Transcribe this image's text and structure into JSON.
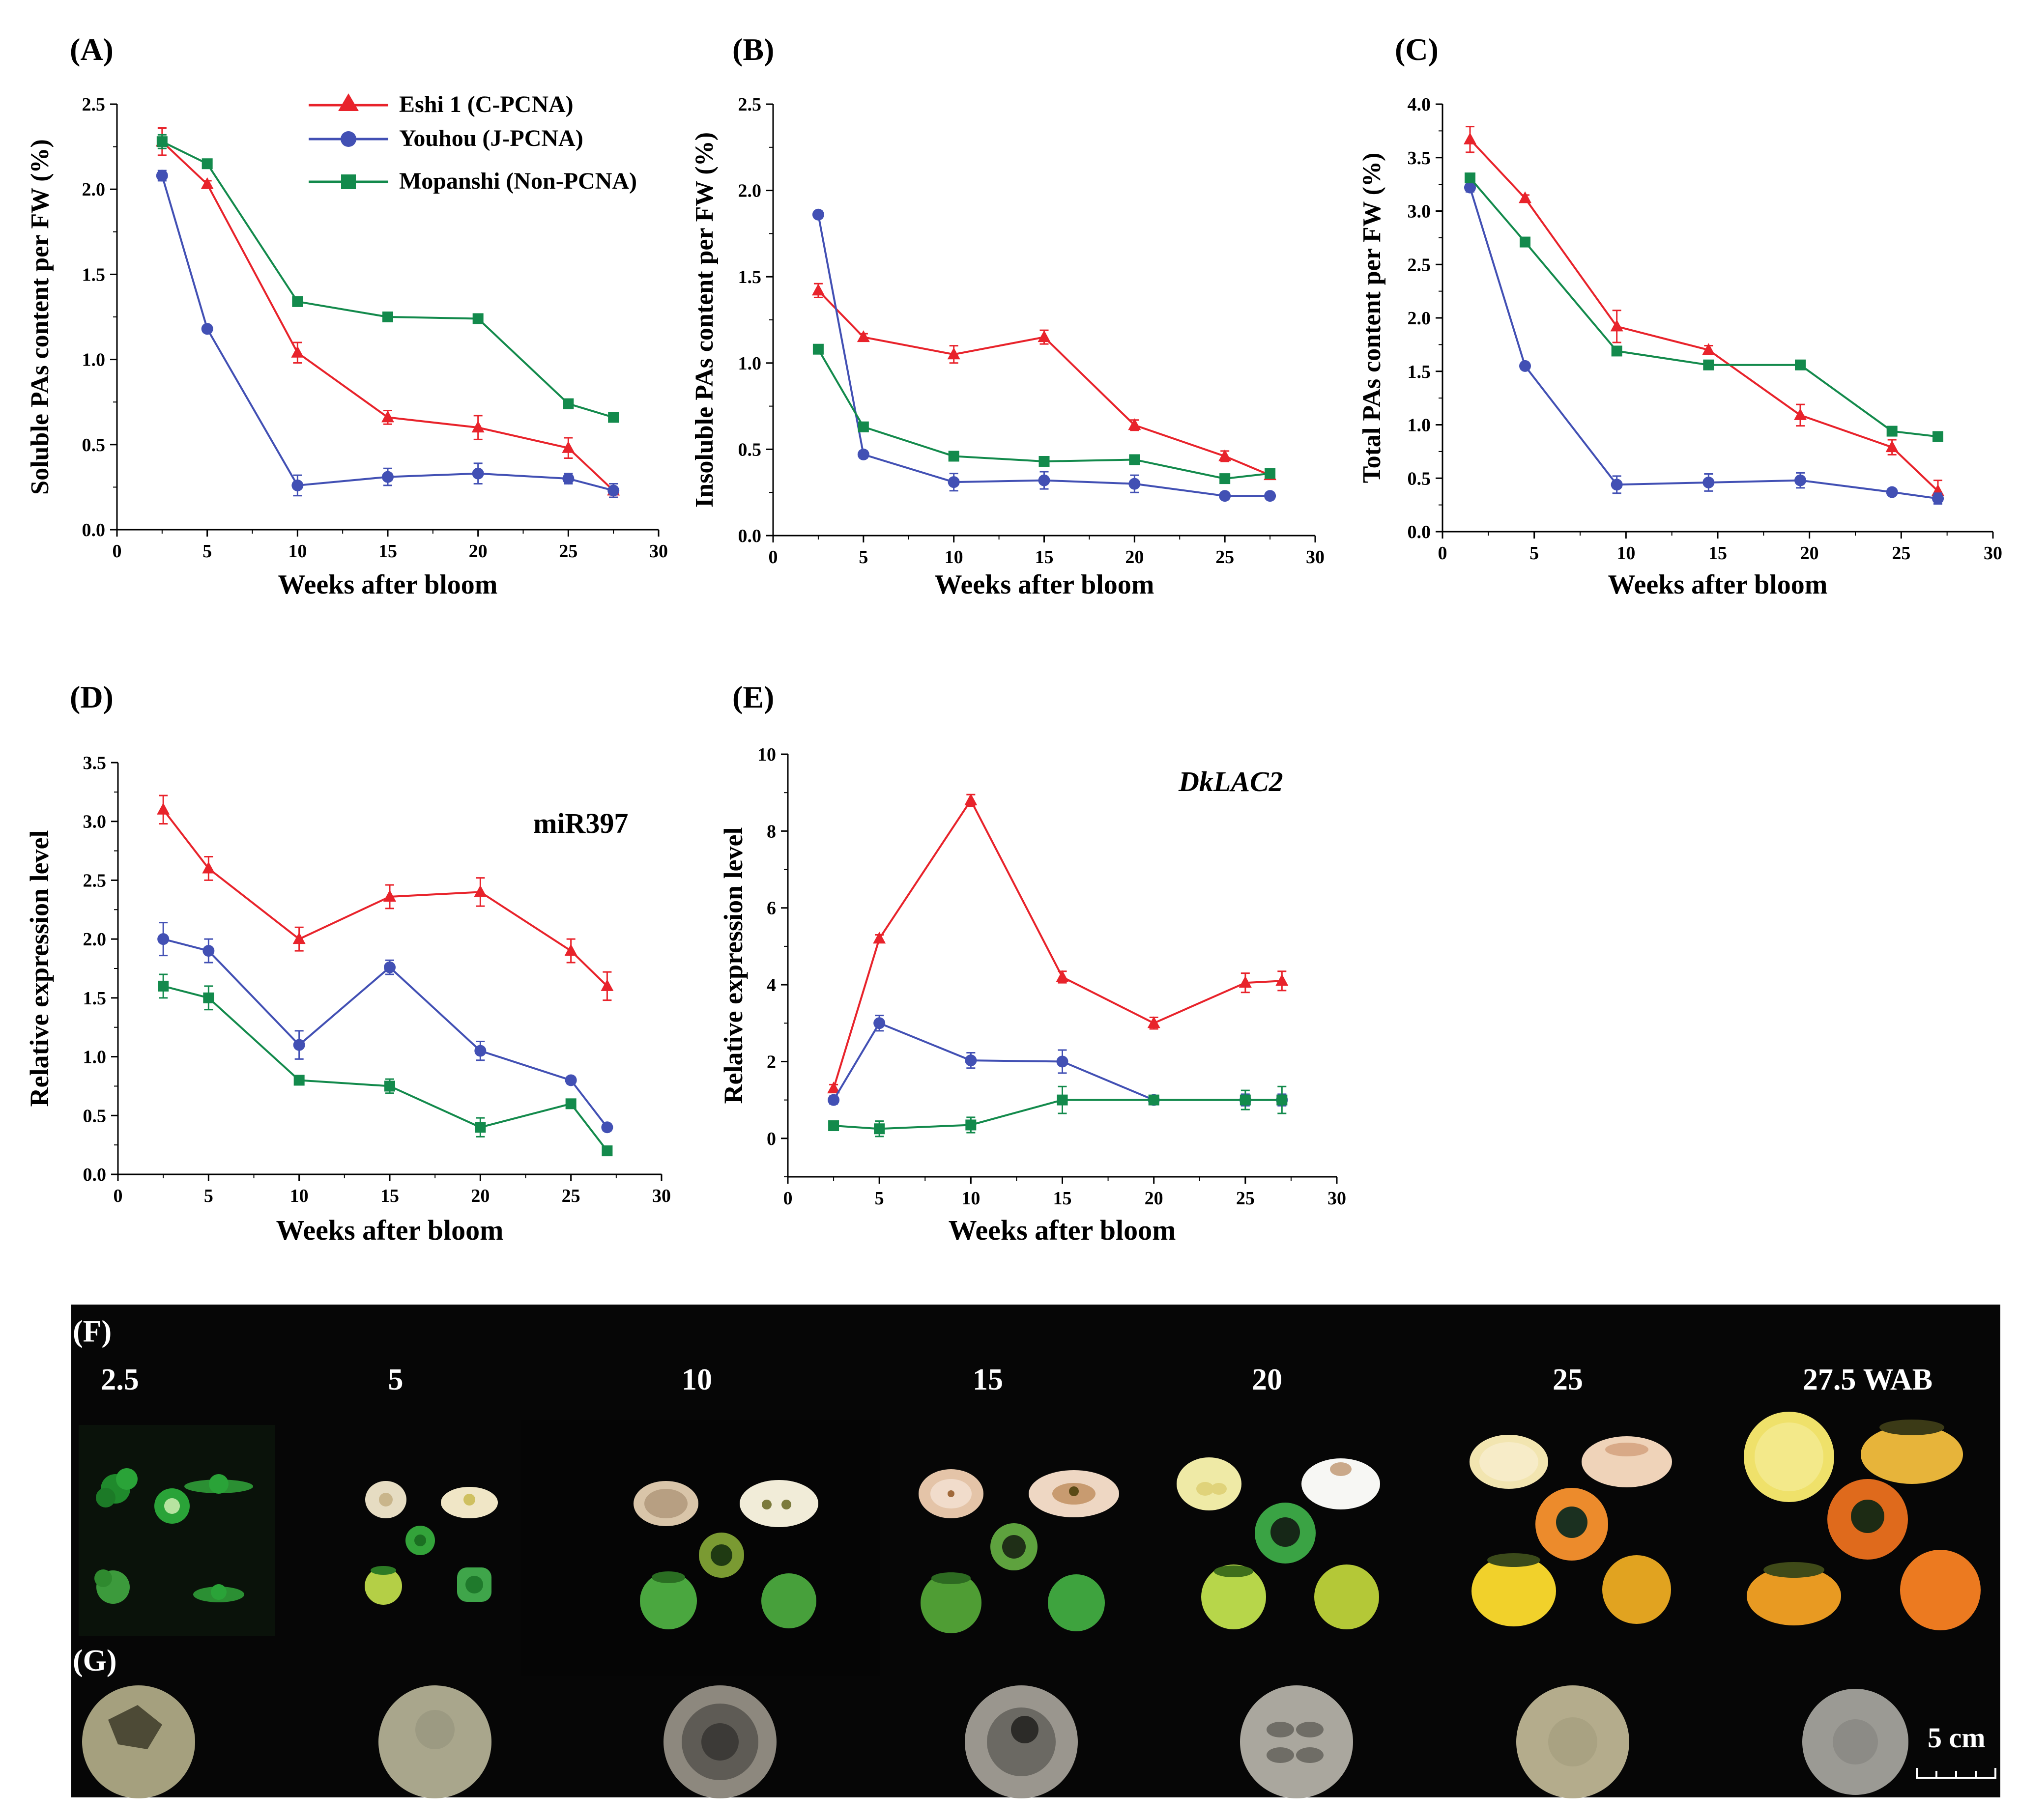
{
  "colors": {
    "eshi": "#e8232b",
    "youhou": "#4250b4",
    "mopanshi": "#138a4c",
    "axis": "#000000",
    "photo_bg": "#060606",
    "photo_text": "#ffffff"
  },
  "legend": {
    "items": [
      {
        "series": "eshi",
        "label": "Eshi 1 (C-PCNA)",
        "marker": "triangle"
      },
      {
        "series": "youhou",
        "label": "Youhou  (J-PCNA)",
        "marker": "circle"
      },
      {
        "series": "mopanshi",
        "label": "Mopanshi  (Non-PCNA)",
        "marker": "square"
      }
    ]
  },
  "chart_data": [
    {
      "panel_label": "(A)",
      "type": "line",
      "title": "",
      "xlabel": "Weeks after bloom",
      "ylabel": "Soluble PAs content per FW (%)",
      "xlim": [
        0,
        30
      ],
      "ylim": [
        0,
        2.5
      ],
      "xticks": [
        "0",
        "5",
        "10",
        "15",
        "20",
        "25",
        "30"
      ],
      "yticks": [
        "0.0",
        "0.5",
        "1.0",
        "1.5",
        "2.0",
        "2.5"
      ],
      "series": [
        {
          "name": "Eshi 1 (C-PCNA)",
          "key": "eshi",
          "marker": "triangle",
          "x": [
            2.5,
            5,
            10,
            15,
            20,
            25,
            27.5
          ],
          "y": [
            2.28,
            2.03,
            1.04,
            0.66,
            0.6,
            0.48,
            0.23
          ],
          "err": [
            0.08,
            0.02,
            0.06,
            0.04,
            0.07,
            0.06,
            0.04
          ]
        },
        {
          "name": "Youhou  (J-PCNA)",
          "key": "youhou",
          "marker": "circle",
          "x": [
            2.5,
            5,
            10,
            15,
            20,
            25,
            27.5
          ],
          "y": [
            2.08,
            1.18,
            0.26,
            0.31,
            0.33,
            0.3,
            0.23
          ],
          "err": [
            0.03,
            0.02,
            0.06,
            0.05,
            0.06,
            0.03,
            0.04
          ]
        },
        {
          "name": "Mopanshi  (Non-PCNA)",
          "key": "mopanshi",
          "marker": "square",
          "x": [
            2.5,
            5,
            10,
            15,
            20,
            25,
            27.5
          ],
          "y": [
            2.28,
            2.15,
            1.34,
            1.25,
            1.24,
            0.74,
            0.66
          ],
          "err": [
            0.04,
            0.02,
            0.02,
            0.02,
            0.02,
            0.02,
            0.02
          ]
        }
      ]
    },
    {
      "panel_label": "(B)",
      "type": "line",
      "title": "",
      "xlabel": "Weeks after bloom",
      "ylabel": "Insoluble PAs content per FW (%)",
      "xlim": [
        0,
        30
      ],
      "ylim": [
        0,
        2.5
      ],
      "xticks": [
        "0",
        "5",
        "10",
        "15",
        "20",
        "25",
        "30"
      ],
      "yticks": [
        "0.0",
        "0.5",
        "1.0",
        "1.5",
        "2.0",
        "2.5"
      ],
      "series": [
        {
          "name": "Eshi 1 (C-PCNA)",
          "key": "eshi",
          "marker": "triangle",
          "x": [
            2.5,
            5,
            10,
            15,
            20,
            25,
            27.5
          ],
          "y": [
            1.42,
            1.15,
            1.05,
            1.15,
            0.64,
            0.46,
            0.35
          ],
          "err": [
            0.04,
            0.02,
            0.05,
            0.04,
            0.03,
            0.03,
            0.02
          ]
        },
        {
          "name": "Youhou  (J-PCNA)",
          "key": "youhou",
          "marker": "circle",
          "x": [
            2.5,
            5,
            10,
            15,
            20,
            25,
            27.5
          ],
          "y": [
            1.86,
            0.47,
            0.31,
            0.32,
            0.3,
            0.23,
            0.23
          ],
          "err": [
            0.02,
            0.02,
            0.05,
            0.05,
            0.05,
            0.02,
            0.02
          ]
        },
        {
          "name": "Mopanshi  (Non-PCNA)",
          "key": "mopanshi",
          "marker": "square",
          "x": [
            2.5,
            5,
            10,
            15,
            20,
            25,
            27.5
          ],
          "y": [
            1.08,
            0.63,
            0.46,
            0.43,
            0.44,
            0.33,
            0.36
          ],
          "err": [
            0.02,
            0.02,
            0.02,
            0.02,
            0.02,
            0.02,
            0.02
          ]
        }
      ]
    },
    {
      "panel_label": "(C)",
      "type": "line",
      "title": "",
      "xlabel": "Weeks after bloom",
      "ylabel": "Total PAs content per FW (%)",
      "xlim": [
        0,
        30
      ],
      "ylim": [
        0,
        4.0
      ],
      "xticks": [
        "0",
        "5",
        "10",
        "15",
        "20",
        "25",
        "30"
      ],
      "yticks": [
        "0.0",
        "0.5",
        "1.0",
        "1.5",
        "2.0",
        "2.5",
        "3.0",
        "3.5",
        "4.0"
      ],
      "series": [
        {
          "name": "Eshi 1 (C-PCNA)",
          "key": "eshi",
          "marker": "triangle",
          "x": [
            1.5,
            4.5,
            9.5,
            14.5,
            19.5,
            24.5,
            27
          ],
          "y": [
            3.67,
            3.12,
            1.92,
            1.7,
            1.09,
            0.79,
            0.38
          ],
          "err": [
            0.12,
            0.03,
            0.15,
            0.04,
            0.1,
            0.07,
            0.1
          ]
        },
        {
          "name": "Youhou  (J-PCNA)",
          "key": "youhou",
          "marker": "circle",
          "x": [
            1.5,
            4.5,
            9.5,
            14.5,
            19.5,
            24.5,
            27
          ],
          "y": [
            3.22,
            1.55,
            0.44,
            0.46,
            0.48,
            0.37,
            0.31
          ],
          "err": [
            0.04,
            0.03,
            0.08,
            0.08,
            0.07,
            0.03,
            0.05
          ]
        },
        {
          "name": "Mopanshi  (Non-PCNA)",
          "key": "mopanshi",
          "marker": "square",
          "x": [
            1.5,
            4.5,
            9.5,
            14.5,
            19.5,
            24.5,
            27
          ],
          "y": [
            3.31,
            2.71,
            1.69,
            1.56,
            1.56,
            0.94,
            0.89
          ],
          "err": [
            0.04,
            0.02,
            0.03,
            0.02,
            0.02,
            0.02,
            0.02
          ]
        }
      ]
    },
    {
      "panel_label": "(D)",
      "type": "line",
      "title": "miR397",
      "title_italic": false,
      "xlabel": "Weeks after bloom",
      "ylabel": "Relative expression level",
      "xlim": [
        0,
        30
      ],
      "ylim": [
        0,
        3.5
      ],
      "xticks": [
        "0",
        "5",
        "10",
        "15",
        "20",
        "25",
        "30"
      ],
      "yticks": [
        "0.0",
        "0.5",
        "1.0",
        "1.5",
        "2.0",
        "2.5",
        "3.0",
        "3.5"
      ],
      "series": [
        {
          "name": "Eshi 1 (C-PCNA)",
          "key": "eshi",
          "marker": "triangle",
          "x": [
            2.5,
            5,
            10,
            15,
            20,
            25,
            27
          ],
          "y": [
            3.1,
            2.6,
            2.0,
            2.36,
            2.4,
            1.9,
            1.6
          ],
          "err": [
            0.12,
            0.1,
            0.1,
            0.1,
            0.12,
            0.1,
            0.12
          ]
        },
        {
          "name": "Youhou  (J-PCNA)",
          "key": "youhou",
          "marker": "circle",
          "x": [
            2.5,
            5,
            10,
            15,
            20,
            25,
            27
          ],
          "y": [
            2.0,
            1.9,
            1.1,
            1.76,
            1.05,
            0.8,
            0.4
          ],
          "err": [
            0.14,
            0.1,
            0.12,
            0.06,
            0.08,
            0.03,
            0.03
          ]
        },
        {
          "name": "Mopanshi  (Non-PCNA)",
          "key": "mopanshi",
          "marker": "square",
          "x": [
            2.5,
            5,
            10,
            15,
            20,
            25,
            27
          ],
          "y": [
            1.6,
            1.5,
            0.8,
            0.75,
            0.4,
            0.6,
            0.2
          ],
          "err": [
            0.1,
            0.1,
            0.03,
            0.06,
            0.08,
            0.03,
            0.03
          ]
        }
      ]
    },
    {
      "panel_label": "(E)",
      "type": "line",
      "title": "DkLAC2",
      "title_italic": true,
      "xlabel": "Weeks after bloom",
      "ylabel": "Relative expression level",
      "xlim": [
        0,
        30
      ],
      "ylim": [
        -1,
        10
      ],
      "xticks": [
        "0",
        "5",
        "10",
        "15",
        "20",
        "25",
        "30"
      ],
      "yticks": [
        "0",
        "2",
        "4",
        "6",
        "8",
        "10"
      ],
      "ytick_values": [
        0,
        2,
        4,
        6,
        8,
        10
      ],
      "series": [
        {
          "name": "Eshi 1 (C-PCNA)",
          "key": "eshi",
          "marker": "triangle",
          "x": [
            2.5,
            5,
            10,
            15,
            20,
            25,
            27
          ],
          "y": [
            1.3,
            5.2,
            8.8,
            4.2,
            3.0,
            4.05,
            4.1
          ],
          "err": [
            0.1,
            0.1,
            0.15,
            0.15,
            0.15,
            0.25,
            0.25
          ]
        },
        {
          "name": "Youhou  (J-PCNA)",
          "key": "youhou",
          "marker": "circle",
          "x": [
            2.5,
            5,
            10,
            15,
            20,
            25,
            27
          ],
          "y": [
            1.0,
            3.0,
            2.03,
            2.0,
            1.0,
            1.0,
            1.0
          ],
          "err": [
            0.1,
            0.2,
            0.2,
            0.3,
            0.05,
            0.15,
            0.15
          ]
        },
        {
          "name": "Mopanshi  (Non-PCNA)",
          "key": "mopanshi",
          "marker": "square",
          "x": [
            2.5,
            5,
            10,
            15,
            20,
            25,
            27
          ],
          "y": [
            0.33,
            0.25,
            0.35,
            1.0,
            1.0,
            1.0,
            1.0
          ],
          "err": [
            0.05,
            0.2,
            0.2,
            0.35,
            0.05,
            0.25,
            0.35
          ]
        }
      ]
    }
  ],
  "photo_panel": {
    "label_f": "(F)",
    "label_g": "(G)",
    "stages": [
      "2.5",
      "5",
      "10",
      "15",
      "20",
      "25",
      "27.5 WAB"
    ],
    "scale_bar_label": "5 cm"
  }
}
